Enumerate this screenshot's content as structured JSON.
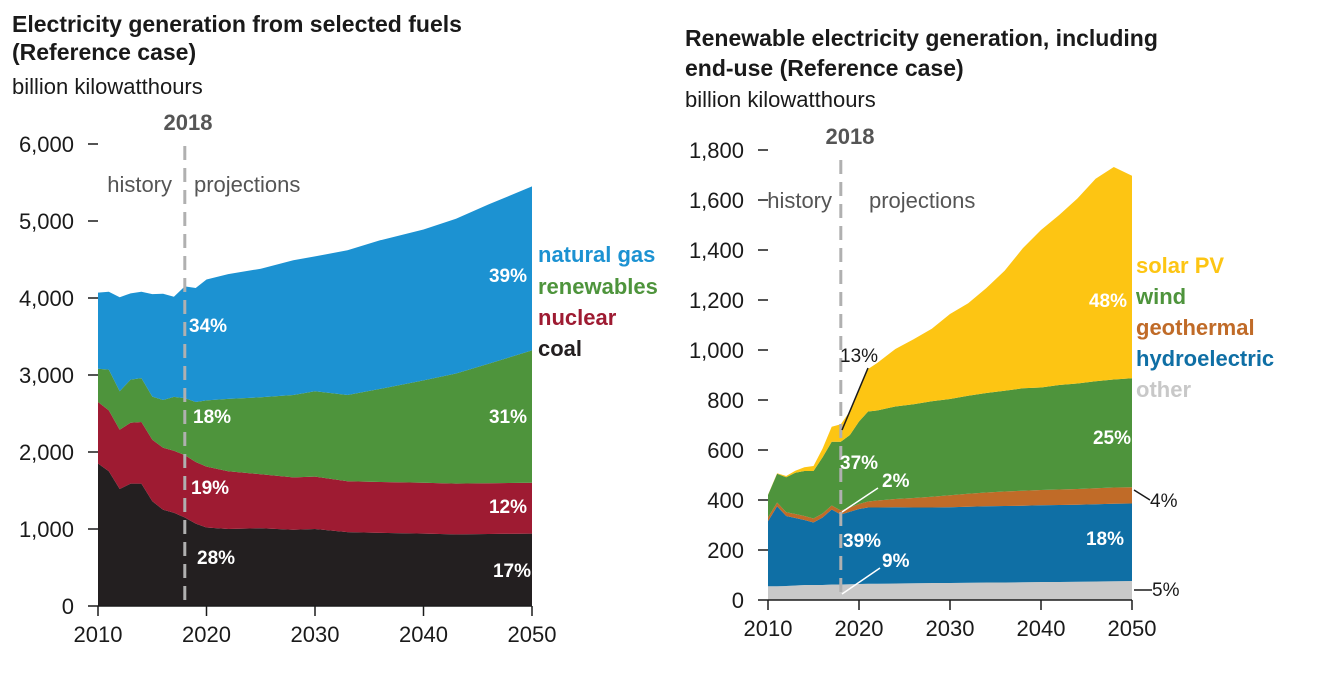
{
  "chart_data": [
    {
      "type": "area",
      "stacked": true,
      "title": "Electricity generation from selected fuels (Reference case)",
      "title_lines": [
        "Electricity generation from selected fuels",
        "(Reference case)"
      ],
      "ylabel": "billion kilowatthours",
      "ylim": [
        0,
        6000
      ],
      "yticks": [
        0,
        1000,
        2000,
        3000,
        4000,
        5000,
        6000
      ],
      "ytick_labels": [
        "0",
        "1,000",
        "2,000",
        "3,000",
        "4,000",
        "5,000",
        "6,000"
      ],
      "xlim": [
        2010,
        2050
      ],
      "xticks": [
        2010,
        2020,
        2030,
        2040,
        2050
      ],
      "xtick_labels": [
        "2010",
        "2020",
        "2030",
        "2040",
        "2050"
      ],
      "divider_year": 2018,
      "divider_label": "2018",
      "history_label": "history",
      "projections_label": "projections",
      "x": [
        2010,
        2011,
        2012,
        2013,
        2014,
        2015,
        2016,
        2017,
        2018,
        2019,
        2020,
        2022,
        2025,
        2028,
        2030,
        2033,
        2036,
        2040,
        2043,
        2046,
        2050
      ],
      "series": [
        {
          "name": "coal",
          "color": "#231f20",
          "values": [
            1850,
            1750,
            1520,
            1590,
            1590,
            1360,
            1250,
            1210,
            1150,
            1070,
            1020,
            1000,
            1010,
            990,
            1000,
            960,
            950,
            940,
            930,
            935,
            940
          ]
        },
        {
          "name": "nuclear",
          "color": "#9e1b32",
          "values": [
            800,
            790,
            770,
            790,
            800,
            800,
            805,
            805,
            810,
            800,
            790,
            750,
            700,
            680,
            680,
            660,
            660,
            660,
            660,
            660,
            660
          ]
        },
        {
          "name": "renewables",
          "color": "#4e943c",
          "values": [
            430,
            530,
            500,
            560,
            570,
            560,
            620,
            700,
            740,
            780,
            860,
            940,
            1000,
            1070,
            1110,
            1120,
            1210,
            1330,
            1430,
            1550,
            1720
          ]
        },
        {
          "name": "natural gas",
          "color": "#1c92d2",
          "values": [
            990,
            1010,
            1220,
            1120,
            1120,
            1330,
            1380,
            1300,
            1450,
            1480,
            1570,
            1620,
            1670,
            1750,
            1750,
            1880,
            1930,
            1960,
            2010,
            2070,
            2130
          ]
        }
      ],
      "legend": [
        {
          "label": "natural gas",
          "color": "#1c92d2"
        },
        {
          "label": "renewables",
          "color": "#4e943c"
        },
        {
          "label": "nuclear",
          "color": "#9e1b32"
        },
        {
          "label": "coal",
          "color": "#231f20"
        }
      ],
      "annotations": [
        {
          "text": "34%",
          "series": "natural gas",
          "year": 2018
        },
        {
          "text": "18%",
          "series": "renewables",
          "year": 2018
        },
        {
          "text": "19%",
          "series": "nuclear",
          "year": 2018
        },
        {
          "text": "28%",
          "series": "coal",
          "year": 2018
        },
        {
          "text": "39%",
          "series": "natural gas",
          "year": 2050
        },
        {
          "text": "31%",
          "series": "renewables",
          "year": 2050
        },
        {
          "text": "12%",
          "series": "nuclear",
          "year": 2050
        },
        {
          "text": "17%",
          "series": "coal",
          "year": 2050
        }
      ]
    },
    {
      "type": "area",
      "stacked": true,
      "title": "Renewable electricity generation, including end-use (Reference case)",
      "title_lines": [
        "Renewable electricity generation, including",
        "end-use (Reference case)"
      ],
      "ylabel": "billion kilowatthours",
      "ylim": [
        0,
        1800
      ],
      "yticks": [
        0,
        200,
        400,
        600,
        800,
        1000,
        1200,
        1400,
        1600,
        1800
      ],
      "ytick_labels": [
        "0",
        "200",
        "400",
        "600",
        "800",
        "1,000",
        "1,200",
        "1,400",
        "1,600",
        "1,800"
      ],
      "xlim": [
        2010,
        2050
      ],
      "xticks": [
        2010,
        2020,
        2030,
        2040,
        2050
      ],
      "xtick_labels": [
        "2010",
        "2020",
        "2030",
        "2040",
        "2050"
      ],
      "divider_year": 2018,
      "divider_label": "2018",
      "history_label": "history",
      "projections_label": "projections",
      "x": [
        2010,
        2011,
        2012,
        2013,
        2014,
        2015,
        2016,
        2017,
        2018,
        2019,
        2020,
        2021,
        2022,
        2024,
        2026,
        2028,
        2030,
        2032,
        2034,
        2036,
        2038,
        2040,
        2042,
        2044,
        2046,
        2048,
        2050
      ],
      "series": [
        {
          "name": "other",
          "color": "#c8c8c8",
          "values": [
            55,
            55,
            56,
            58,
            60,
            60,
            60,
            62,
            62,
            63,
            64,
            65,
            65,
            66,
            67,
            68,
            68,
            69,
            70,
            70,
            71,
            72,
            72,
            73,
            74,
            75,
            76
          ]
        },
        {
          "name": "hydroelectric",
          "color": "#0f6fa5",
          "values": [
            260,
            320,
            280,
            270,
            260,
            250,
            270,
            300,
            280,
            290,
            300,
            305,
            305,
            305,
            303,
            302,
            303,
            304,
            305,
            306,
            306,
            307,
            308,
            308,
            309,
            310,
            310
          ]
        },
        {
          "name": "geothermal",
          "color": "#c06b28",
          "values": [
            15,
            15,
            15,
            16,
            16,
            16,
            16,
            16,
            16,
            17,
            20,
            24,
            28,
            33,
            38,
            43,
            48,
            52,
            55,
            58,
            60,
            61,
            62,
            63,
            64,
            65,
            65
          ]
        },
        {
          "name": "wind",
          "color": "#4e943c",
          "values": [
            90,
            115,
            140,
            165,
            180,
            190,
            225,
            255,
            275,
            290,
            330,
            360,
            360,
            370,
            375,
            382,
            385,
            392,
            398,
            403,
            410,
            410,
            418,
            422,
            428,
            432,
            436
          ]
        },
        {
          "name": "solar PV",
          "color": "#fdc513",
          "values": [
            1,
            2,
            5,
            8,
            15,
            20,
            35,
            60,
            70,
            95,
            130,
            170,
            190,
            230,
            260,
            290,
            340,
            370,
            420,
            480,
            560,
            630,
            680,
            740,
            810,
            850,
            810
          ]
        }
      ],
      "legend": [
        {
          "label": "solar PV",
          "color": "#fdc513"
        },
        {
          "label": "wind",
          "color": "#4e943c"
        },
        {
          "label": "geothermal",
          "color": "#c06b28"
        },
        {
          "label": "hydroelectric",
          "color": "#0f6fa5"
        },
        {
          "label": "other",
          "color": "#c8c8c8"
        }
      ],
      "annotations": [
        {
          "text": "13%",
          "series": "solar PV",
          "year": 2018
        },
        {
          "text": "37%",
          "series": "wind",
          "year": 2018
        },
        {
          "text": "2%",
          "series": "geothermal",
          "year": 2018
        },
        {
          "text": "39%",
          "series": "hydroelectric",
          "year": 2018
        },
        {
          "text": "9%",
          "series": "other",
          "year": 2018
        },
        {
          "text": "48%",
          "series": "solar PV",
          "year": 2050
        },
        {
          "text": "25%",
          "series": "wind",
          "year": 2050
        },
        {
          "text": "4%",
          "series": "geothermal",
          "year": 2050
        },
        {
          "text": "18%",
          "series": "hydroelectric",
          "year": 2050
        },
        {
          "text": "5%",
          "series": "other",
          "year": 2050
        }
      ]
    }
  ]
}
